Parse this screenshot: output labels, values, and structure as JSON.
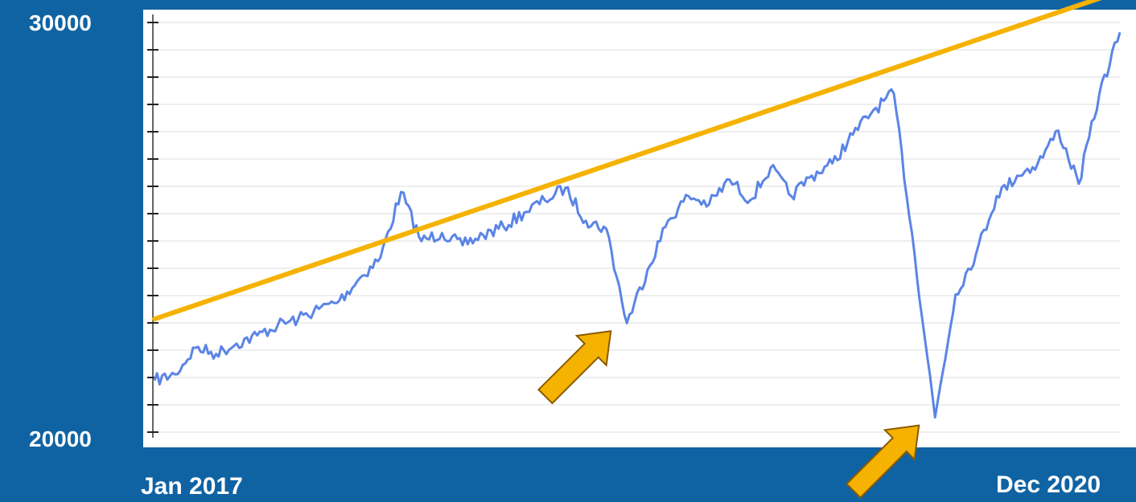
{
  "colors": {
    "background": "#0f63a3",
    "plot_area": "#ffffff",
    "series_line": "#5b84e6",
    "trend_line": "#f5b200",
    "arrow_fill": "#f5b200",
    "arrow_stroke": "#8a5a00",
    "label_text": "#ffffff"
  },
  "chart_data": {
    "type": "line",
    "title": "",
    "xlabel": "",
    "ylabel": "",
    "y_axis": {
      "top_label": "30000",
      "bottom_label": "20000",
      "ylim": [
        20000,
        30000
      ]
    },
    "x_axis": {
      "start_label": "Jan 2017",
      "end_label": "Dec 2020"
    },
    "grid": "horizontal",
    "series": [
      {
        "x": [
          "2017-01",
          "2017-02",
          "2017-03",
          "2017-04",
          "2017-05",
          "2017-06",
          "2017-07",
          "2017-08",
          "2017-09",
          "2017-10",
          "2017-11",
          "2017-12",
          "2018-01",
          "2018-02",
          "2018-03",
          "2018-04",
          "2018-05",
          "2018-06",
          "2018-07",
          "2018-08",
          "2018-09",
          "2018-10",
          "2018-11",
          "2018-12",
          "2019-01",
          "2019-02",
          "2019-03",
          "2019-04",
          "2019-05",
          "2019-06",
          "2019-07",
          "2019-08",
          "2019-09",
          "2019-10",
          "2019-11",
          "2019-12",
          "2020-01",
          "2020-02",
          "2020-03",
          "2020-04",
          "2020-05",
          "2020-06",
          "2020-07",
          "2020-08",
          "2020-09",
          "2020-10",
          "2020-11",
          "2020-12"
        ],
        "values": [
          21300,
          21450,
          22100,
          21950,
          22200,
          22400,
          22650,
          22800,
          23050,
          23250,
          23800,
          24300,
          25900,
          24700,
          24900,
          24600,
          24850,
          25050,
          25400,
          25700,
          26000,
          25200,
          25000,
          22700,
          24000,
          25200,
          25800,
          25600,
          26200,
          25700,
          26500,
          25800,
          26300,
          26600,
          27300,
          27900,
          28300,
          24400,
          20400,
          23400,
          24400,
          25800,
          26300,
          26600,
          27400,
          26100,
          28300,
          29800
        ]
      }
    ],
    "trend_line": {
      "from": {
        "x": "2017-01",
        "y": 22800
      },
      "to": {
        "x": "2020-12",
        "y": 30800
      }
    },
    "annotations": [
      {
        "type": "arrow",
        "points_to": {
          "x": "2018-12",
          "y": 22700
        }
      },
      {
        "type": "arrow",
        "points_to": {
          "x": "2020-03",
          "y": 20400
        }
      }
    ]
  }
}
